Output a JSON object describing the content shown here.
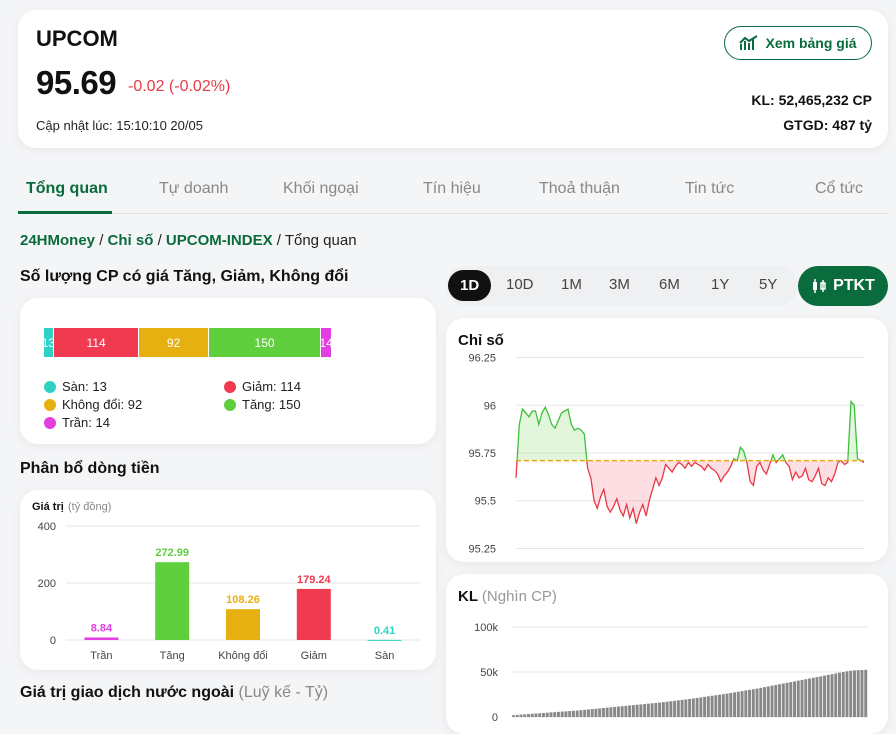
{
  "header": {
    "index_name": "UPCOM",
    "price": "95.69",
    "change": "-0.02 (-0.02%)",
    "updated": "Cập nhật lúc: 15:10:10 20/05",
    "board_button": "Xem bảng giá",
    "volume": "KL: 52,465,232 CP",
    "value": "GTGD: 487 tỷ"
  },
  "tabs": [
    "Tổng quan",
    "Tự doanh",
    "Khối ngoại",
    "Tín hiệu",
    "Thoả thuận",
    "Tin tức",
    "Cổ tức"
  ],
  "breadcrumb": {
    "root": "24HMoney",
    "sep": "/",
    "l1": "Chỉ số",
    "l2": "UPCOM-INDEX",
    "current": "Tổng quan"
  },
  "breadth": {
    "title": "Số lượng CP có giá Tăng, Giảm, Không đổi",
    "segments": [
      {
        "label": "Sàn",
        "count": 13,
        "text": "13",
        "color": "#2ed1c4"
      },
      {
        "label": "Giảm",
        "count": 114,
        "text": "114",
        "color": "#f03a4f"
      },
      {
        "label": "Không đổi",
        "count": 92,
        "text": "92",
        "color": "#e6b011"
      },
      {
        "label": "Tăng",
        "count": 150,
        "text": "150",
        "color": "#5fcf3e"
      },
      {
        "label": "Trần",
        "count": 14,
        "text": "14",
        "color": "#e33ee0"
      }
    ],
    "legend": [
      "Sàn: 13",
      "Giảm: 114",
      "Không đổi: 92",
      "Tăng: 150",
      "Trần: 14"
    ]
  },
  "flow": {
    "title": "Phân bổ dòng tiền",
    "ylabel": "Giá trị",
    "yunit": "(tỷ đồng)"
  },
  "foreign": {
    "title": "Giá trị giao dịch nước ngoài",
    "sub": "(Luỹ kế - Tỷ)"
  },
  "periods": [
    "1D",
    "10D",
    "1M",
    "3M",
    "6M",
    "1Y",
    "5Y"
  ],
  "ptkt_label": "PTKT",
  "index_chart": {
    "title": "Chỉ số",
    "yticks": [
      "96.25",
      "96",
      "95.75",
      "95.5",
      "95.25"
    ]
  },
  "vol_chart": {
    "title": "KL",
    "sub": "(Nghìn CP)",
    "yticks": [
      "100k",
      "50k",
      "0"
    ]
  },
  "chart_data": [
    {
      "type": "bar",
      "title": "Phân bổ dòng tiền",
      "ylabel": "Giá trị (tỷ đồng)",
      "categories": [
        "Trần",
        "Tăng",
        "Không đổi",
        "Giảm",
        "Sàn"
      ],
      "values": [
        8.84,
        272.99,
        108.26,
        179.24,
        0.41
      ],
      "value_labels": [
        "8.84",
        "272.99",
        "108.26",
        "179.24",
        "0.41"
      ],
      "colors": [
        "#e33ee0",
        "#5fcf3e",
        "#e6b011",
        "#f03a4f",
        "#2ed1c4"
      ],
      "ylim": [
        0,
        400
      ],
      "yticks": [
        0,
        200,
        400
      ],
      "ytick_labels": [
        "0",
        "200",
        "400"
      ]
    },
    {
      "type": "line",
      "title": "Chỉ số",
      "ylim": [
        95.2,
        96.3
      ],
      "reference": 95.71,
      "y": [
        95.62,
        95.9,
        95.98,
        95.96,
        95.94,
        95.97,
        95.97,
        95.9,
        95.96,
        95.99,
        95.95,
        95.9,
        95.88,
        95.92,
        95.96,
        95.97,
        95.98,
        95.9,
        95.87,
        95.88,
        95.87,
        95.85,
        95.67,
        95.62,
        95.5,
        95.46,
        95.52,
        95.56,
        95.47,
        95.44,
        95.47,
        95.51,
        95.45,
        95.42,
        95.48,
        95.41,
        95.46,
        95.38,
        95.44,
        95.48,
        95.42,
        95.5,
        95.56,
        95.62,
        95.58,
        95.62,
        95.69,
        95.67,
        95.65,
        95.68,
        95.7,
        95.69,
        95.67,
        95.7,
        95.68,
        95.7,
        95.69,
        95.68,
        95.66,
        95.69,
        95.67,
        95.66,
        95.64,
        95.6,
        95.63,
        95.65,
        95.68,
        95.72,
        95.71,
        95.78,
        95.76,
        95.7,
        95.6,
        95.58,
        95.68,
        95.7,
        95.66,
        95.64,
        95.69,
        95.74,
        95.7,
        95.72,
        95.74,
        95.7,
        95.68,
        95.61,
        95.65,
        95.62,
        95.63,
        95.67,
        95.61,
        95.6,
        95.63,
        95.67,
        95.59,
        95.58,
        95.62,
        95.6,
        95.64,
        95.7,
        95.71,
        95.69,
        95.7,
        96.02,
        96.0,
        95.72,
        95.71,
        95.7
      ]
    },
    {
      "type": "bar",
      "title": "KL",
      "ylim": [
        0,
        110000
      ],
      "yticks": [
        0,
        50000,
        100000
      ],
      "values": [
        2000,
        2400,
        2700,
        3000,
        3300,
        3600,
        3900,
        4200,
        4500,
        4800,
        5100,
        5400,
        5700,
        6000,
        6300,
        6600,
        6900,
        7200,
        7600,
        8000,
        8400,
        8800,
        9200,
        9600,
        10000,
        10400,
        10800,
        11200,
        11600,
        12000,
        12400,
        12800,
        13200,
        13600,
        14000,
        14400,
        14800,
        15200,
        15600,
        16000,
        16500,
        17000,
        17500,
        18000,
        18500,
        19000,
        19500,
        20000,
        20600,
        21200,
        21800,
        22400,
        23000,
        23600,
        24200,
        24800,
        25400,
        26000,
        26700,
        27400,
        28100,
        28800,
        29500,
        30200,
        30900,
        31600,
        32400,
        33200,
        34000,
        34800,
        35600,
        36400,
        37200,
        38000,
        38800,
        39600,
        40400,
        41200,
        42000,
        42800,
        43600,
        44400,
        45200,
        46000,
        46800,
        47600,
        48400,
        49200,
        50000,
        50800,
        51400,
        51800,
        52000,
        52200,
        52465
      ]
    }
  ]
}
